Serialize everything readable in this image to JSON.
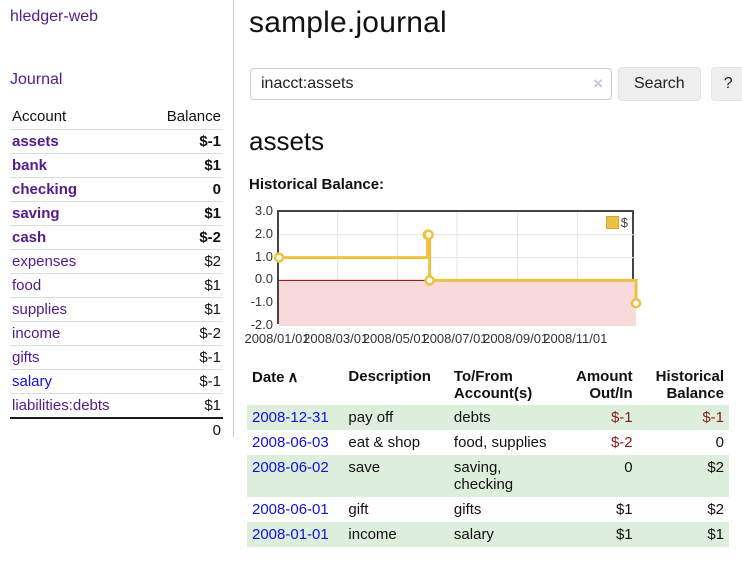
{
  "app": {
    "title": "hledger-web"
  },
  "sidebar": {
    "nav": {
      "journal_label": "Journal"
    },
    "accounts_table": {
      "col_account": "Account",
      "col_balance": "Balance",
      "rows": [
        {
          "name": "assets",
          "balance": "$-1",
          "depth": 1,
          "bold": true,
          "neg": "strong"
        },
        {
          "name": "bank",
          "balance": "$1",
          "depth": 2,
          "bold": true
        },
        {
          "name": "checking",
          "balance": "0",
          "depth": 3,
          "bold": true
        },
        {
          "name": "saving",
          "balance": "$1",
          "depth": 3,
          "bold": true
        },
        {
          "name": "cash",
          "balance": "$-2",
          "depth": 2,
          "bold": true,
          "neg": "strong"
        },
        {
          "name": "expenses",
          "balance": "$2",
          "depth": 1
        },
        {
          "name": "food",
          "balance": "$1",
          "depth": 2
        },
        {
          "name": "supplies",
          "balance": "$1",
          "depth": 2
        },
        {
          "name": "income",
          "balance": "$-2",
          "depth": 1,
          "neg": "muted"
        },
        {
          "name": "gifts",
          "balance": "$-1",
          "depth": 2,
          "neg": "muted"
        },
        {
          "name": "salary",
          "balance": "$-1",
          "depth": 2,
          "neg": "muted",
          "link": "unvisited"
        },
        {
          "name": "liabilities:debts",
          "balance": "$1",
          "depth": 1
        }
      ],
      "total": "0"
    }
  },
  "main": {
    "title": "sample.journal",
    "search": {
      "value": "inacct:assets",
      "clear_icon": "×",
      "button_label": "Search",
      "help_label": "?"
    },
    "account_heading": "assets",
    "chart_label": "Historical Balance:"
  },
  "chart_data": {
    "type": "line",
    "step": true,
    "title": "Historical Balance:",
    "series": [
      {
        "name": "$",
        "points": [
          [
            "2008-01-01",
            1
          ],
          [
            "2008-06-01",
            2
          ],
          [
            "2008-06-02",
            2
          ],
          [
            "2008-06-03",
            0
          ],
          [
            "2008-12-31",
            -1
          ]
        ]
      }
    ],
    "x_range": [
      "2008-01-01",
      "2008-12-31"
    ],
    "y_range": [
      -2,
      3
    ],
    "x_ticks": [
      "2008/01/01",
      "2008/03/01",
      "2008/05/01",
      "2008/07/01",
      "2008/09/01",
      "2008/11/01"
    ],
    "y_ticks": [
      3.0,
      2.0,
      1.0,
      0.0,
      -1.0,
      -2.0
    ],
    "legend": {
      "label": "$",
      "position": "top-right"
    },
    "grid": true,
    "negative_region_shaded": true
  },
  "register_table": {
    "headers": {
      "date": "Date",
      "sort_icon": "∧",
      "description": "Description",
      "account": "To/From Account(s)",
      "amount": "Amount Out/In",
      "balance": "Historical Balance"
    },
    "rows": [
      {
        "date": "2008-12-31",
        "description": "pay off",
        "accounts": "debts",
        "amount": "$-1",
        "balance": "$-1"
      },
      {
        "date": "2008-06-03",
        "description": "eat & shop",
        "accounts": "food, supplies",
        "amount": "$-2",
        "balance": "0"
      },
      {
        "date": "2008-06-02",
        "description": "save",
        "accounts": "saving, checking",
        "amount": "0",
        "balance": "$2"
      },
      {
        "date": "2008-06-01",
        "description": "gift",
        "accounts": "gifts",
        "amount": "$1",
        "balance": "$2"
      },
      {
        "date": "2008-01-01",
        "description": "income",
        "accounts": "salary",
        "amount": "$1",
        "balance": "$1"
      }
    ]
  },
  "colors": {
    "link_purple": "#551a8b",
    "link_blue": "#1111dd",
    "negative_strong": "#7d1515",
    "negative_muted": "#b36a6a",
    "row_green": "#ddeedd",
    "chart_line": "#edc240",
    "chart_negative_fill": "#f9dada",
    "chart_zero_line": "#8b0000",
    "chart_border": "#444444",
    "grid_line": "#e3e3e3",
    "button_bg": "#eeeeee"
  }
}
